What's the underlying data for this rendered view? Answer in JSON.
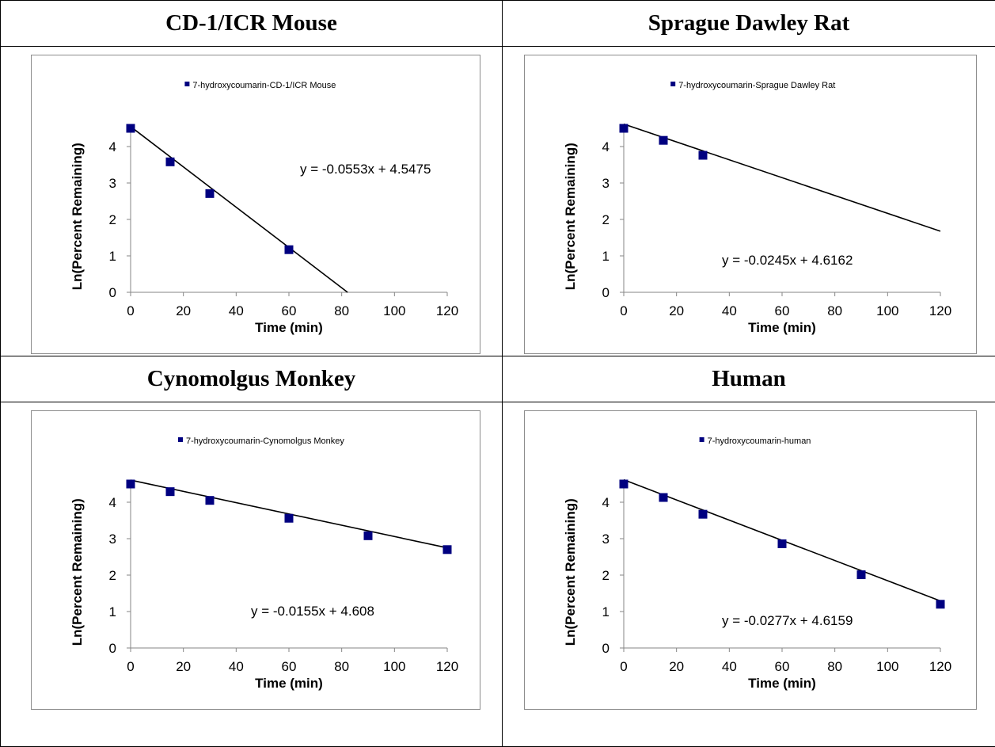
{
  "panels": [
    {
      "header": "CD-1/ICR Mouse"
    },
    {
      "header": "Sprague Dawley Rat"
    },
    {
      "header": "Cynomolgus Monkey"
    },
    {
      "header": "Human"
    }
  ],
  "chart_data": [
    {
      "type": "scatter",
      "xlabel": "Time (min)",
      "ylabel": "Ln(Percent Remaining)",
      "xlim": [
        0,
        120
      ],
      "ylim": [
        0,
        4.6
      ],
      "xticks": [
        0,
        20,
        40,
        60,
        80,
        100,
        120
      ],
      "yticks": [
        0,
        1,
        2,
        3,
        4
      ],
      "grid": false,
      "legend": "top-center",
      "marker_color": "#000080",
      "series": [
        {
          "name": "7-hydroxycoumarin-CD-1/ICR Mouse",
          "x": [
            0,
            15,
            30,
            60
          ],
          "y": [
            4.5,
            3.58,
            2.71,
            1.17
          ]
        }
      ],
      "trendline": {
        "slope": -0.0553,
        "intercept": 4.5475,
        "equation": "y = -0.0553x + 4.5475"
      }
    },
    {
      "type": "scatter",
      "xlabel": "Time (min)",
      "ylabel": "Ln(Percent Remaining)",
      "xlim": [
        0,
        120
      ],
      "ylim": [
        0,
        4.6
      ],
      "xticks": [
        0,
        20,
        40,
        60,
        80,
        100,
        120
      ],
      "yticks": [
        0,
        1,
        2,
        3,
        4
      ],
      "grid": false,
      "legend": "top-center",
      "marker_color": "#000080",
      "series": [
        {
          "name": "7-hydroxycoumarin-Sprague Dawley Rat",
          "x": [
            0,
            15,
            30
          ],
          "y": [
            4.5,
            4.17,
            3.76
          ]
        }
      ],
      "trendline": {
        "slope": -0.0245,
        "intercept": 4.6162,
        "equation": "y = -0.0245x + 4.6162"
      }
    },
    {
      "type": "scatter",
      "xlabel": "Time (min)",
      "ylabel": "Ln(Percent Remaining)",
      "xlim": [
        0,
        120
      ],
      "ylim": [
        0,
        4.6
      ],
      "xticks": [
        0,
        20,
        40,
        60,
        80,
        100,
        120
      ],
      "yticks": [
        0,
        1,
        2,
        3,
        4
      ],
      "grid": false,
      "legend": "top-center",
      "marker_color": "#000080",
      "series": [
        {
          "name": "7-hydroxycoumarin-Cynomolgus Monkey",
          "x": [
            0,
            15,
            30,
            60,
            90,
            120
          ],
          "y": [
            4.5,
            4.29,
            4.05,
            3.56,
            3.08,
            2.7
          ]
        }
      ],
      "trendline": {
        "slope": -0.0155,
        "intercept": 4.608,
        "equation": "y = -0.0155x + 4.608"
      }
    },
    {
      "type": "scatter",
      "xlabel": "Time (min)",
      "ylabel": "Ln(Percent Remaining)",
      "xlim": [
        0,
        120
      ],
      "ylim": [
        0,
        4.6
      ],
      "xticks": [
        0,
        20,
        40,
        60,
        80,
        100,
        120
      ],
      "yticks": [
        0,
        1,
        2,
        3,
        4
      ],
      "grid": false,
      "legend": "top-center",
      "marker_color": "#000080",
      "series": [
        {
          "name": "7-hydroxycoumarin-human",
          "x": [
            0,
            15,
            30,
            60,
            90,
            120
          ],
          "y": [
            4.5,
            4.13,
            3.67,
            2.86,
            2.01,
            1.2
          ]
        }
      ],
      "trendline": {
        "slope": -0.0277,
        "intercept": 4.6159,
        "equation": "y = -0.0277x + 4.6159"
      }
    }
  ]
}
